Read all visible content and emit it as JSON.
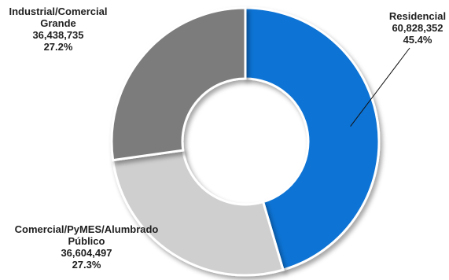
{
  "chart_data": {
    "type": "pie",
    "donut": true,
    "title": "",
    "legend": "none",
    "slices": [
      {
        "name": "Residencial",
        "value": 60828352,
        "value_label": "60,828,352",
        "percent_label": "45.4%",
        "color": "#0a73d4",
        "name_lines": [
          "Residencial"
        ]
      },
      {
        "name": "Comercial/PyMES/Alumbrado Público",
        "value": 36604497,
        "value_label": "36,604,497",
        "percent_label": "27.3%",
        "color": "#cfcfcf",
        "name_lines": [
          "Comercial/PyMES/Alumbrado",
          "Público"
        ]
      },
      {
        "name": "Industrial/Comercial Grande",
        "value": 36438735,
        "value_label": "36,438,735",
        "percent_label": "27.2%",
        "color": "#7c7c7c",
        "name_lines": [
          "Industrial/Comercial",
          "Grande"
        ]
      }
    ]
  }
}
